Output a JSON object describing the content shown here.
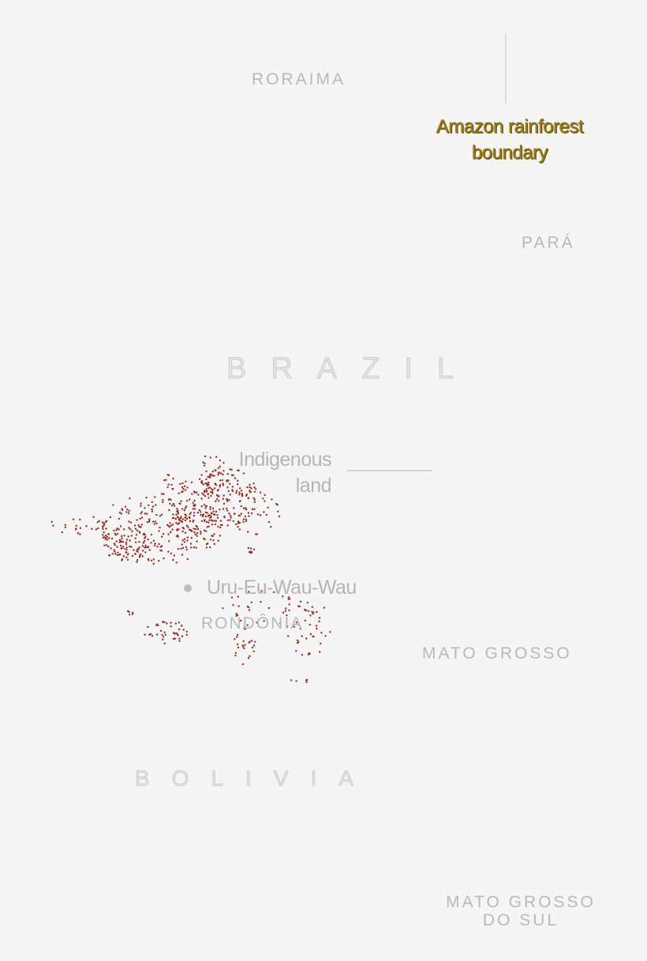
{
  "labels": {
    "roraima": "RORAIMA",
    "para": "PARÁ",
    "brazil": "BRAZIL",
    "rondonia": "RONDÔNIA",
    "mato_grosso": "MATO GROSSO",
    "bolivia": "BOLIVIA",
    "mato_grosso_do_sul_1": "MATO GROSSO",
    "mato_grosso_do_sul_2": "DO SUL"
  },
  "annotations": {
    "amazon_line1": "Amazon rainforest",
    "amazon_line2": "boundary",
    "indigenous_line1": "Indigenous",
    "indigenous_line2": "land",
    "territory": "Uru-Eu-Wau-Wau"
  },
  "colors": {
    "background": "#f5f5f5",
    "fire_points": "#9b2a22",
    "amazon_label": "#9a7a18",
    "label_gray": "#b9b9b9"
  }
}
